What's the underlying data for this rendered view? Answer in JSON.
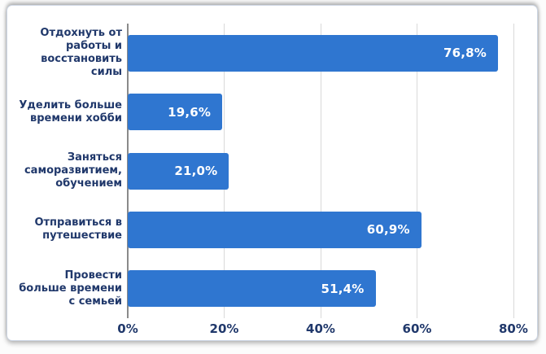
{
  "chart_data": {
    "type": "bar",
    "orientation": "horizontal",
    "title": "",
    "xlabel": "",
    "ylabel": "",
    "categories": [
      "Отдохнуть от\nработы и\nвосстановить\nсилы",
      "Уделить больше\nвремени хобби",
      "Заняться\nсаморазвитием,\nобучением",
      "Отправиться в\nпутешествие",
      "Провести\nбольше времени\nс семьей"
    ],
    "values": [
      76.8,
      19.6,
      21.0,
      60.9,
      51.4
    ],
    "value_labels": [
      "76,8%",
      "19,6%",
      "21,0%",
      "60,9%",
      "51,4%"
    ],
    "x_tick_values": [
      0,
      20,
      40,
      60,
      80
    ],
    "x_tick_labels": [
      "0%",
      "20%",
      "40%",
      "60%",
      "80%"
    ],
    "xlim": [
      0,
      82.2
    ],
    "axis_max": 82.2,
    "grid": true,
    "legend": false,
    "colors": {
      "bar": "#2f76d0",
      "label_text": "#20386b",
      "tick_text": "#20386b",
      "value_text": "#ffffff",
      "gridline": "#d9d9d9",
      "zero_line": "#8a8a8a",
      "card_background": "#ffffff",
      "card_border": "#ccd5e3"
    }
  }
}
